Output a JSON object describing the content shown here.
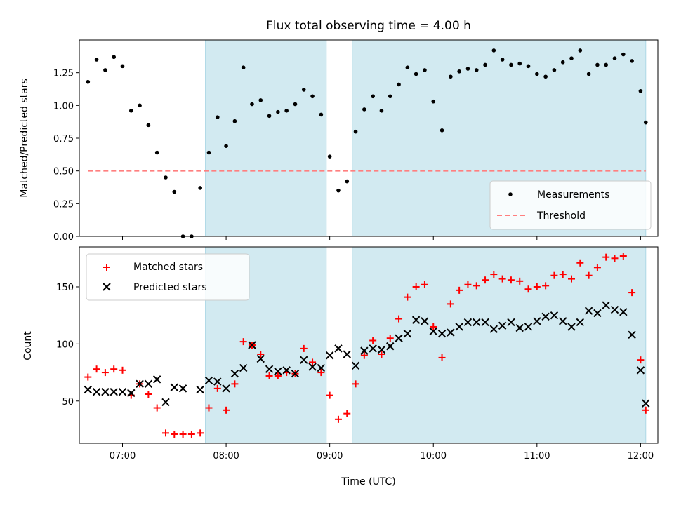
{
  "title": "Flux total observing time = 4.00 h",
  "xlabel": "Time (UTC)",
  "x_ticks": [
    "07:00",
    "08:00",
    "09:00",
    "10:00",
    "11:00",
    "12:00"
  ],
  "colors": {
    "measurement": "#000000",
    "threshold": "#ff7f7f",
    "matched": "#ff0000",
    "predicted": "#000000",
    "shade": "#add8e6"
  },
  "chart_data": [
    {
      "type": "scatter",
      "ylabel": "Matched/Predicted stars",
      "xlim": [
        "06:35",
        "12:10"
      ],
      "ylim": [
        0,
        1.5
      ],
      "y_ticks": [
        0.0,
        0.25,
        0.5,
        0.75,
        1.0,
        1.25
      ],
      "y_tick_labels": [
        "0.00",
        "0.25",
        "0.50",
        "0.75",
        "1.00",
        "1.25"
      ],
      "legend_position": "lower-right",
      "shaded_intervals": [
        [
          "07:48",
          "08:58"
        ],
        [
          "09:13",
          "12:03"
        ]
      ],
      "threshold": {
        "name": "Threshold",
        "value": 0.5,
        "x_range": [
          "06:40",
          "12:03"
        ]
      },
      "series": [
        {
          "name": "Measurements",
          "x": [
            "06:40",
            "06:45",
            "06:50",
            "06:55",
            "07:00",
            "07:05",
            "07:10",
            "07:15",
            "07:20",
            "07:25",
            "07:30",
            "07:35",
            "07:40",
            "07:45",
            "07:50",
            "07:55",
            "08:00",
            "08:05",
            "08:10",
            "08:15",
            "08:20",
            "08:25",
            "08:30",
            "08:35",
            "08:40",
            "08:45",
            "08:50",
            "08:55",
            "09:00",
            "09:05",
            "09:10",
            "09:15",
            "09:20",
            "09:25",
            "09:30",
            "09:35",
            "09:40",
            "09:45",
            "09:50",
            "09:55",
            "10:00",
            "10:05",
            "10:10",
            "10:15",
            "10:20",
            "10:25",
            "10:30",
            "10:35",
            "10:40",
            "10:45",
            "10:50",
            "10:55",
            "11:00",
            "11:05",
            "11:10",
            "11:15",
            "11:20",
            "11:25",
            "11:30",
            "11:35",
            "11:40",
            "11:45",
            "11:50",
            "11:55",
            "12:00",
            "12:03"
          ],
          "y": [
            1.18,
            1.35,
            1.27,
            1.37,
            1.3,
            0.96,
            1.0,
            0.85,
            0.64,
            0.45,
            0.34,
            0.0,
            0.0,
            0.37,
            0.64,
            0.91,
            0.69,
            0.88,
            1.29,
            1.01,
            1.04,
            0.92,
            0.95,
            0.96,
            1.01,
            1.12,
            1.07,
            0.93,
            0.61,
            0.35,
            0.42,
            0.8,
            0.97,
            1.07,
            0.96,
            1.07,
            1.16,
            1.29,
            1.24,
            1.27,
            1.03,
            0.81,
            1.22,
            1.26,
            1.28,
            1.27,
            1.31,
            1.42,
            1.35,
            1.31,
            1.32,
            1.3,
            1.24,
            1.22,
            1.27,
            1.33,
            1.36,
            1.42,
            1.24,
            1.31,
            1.31,
            1.36,
            1.39,
            1.34,
            1.11,
            0.87
          ]
        }
      ]
    },
    {
      "type": "scatter",
      "ylabel": "Count",
      "xlim": [
        "06:35",
        "12:10"
      ],
      "ylim": [
        13,
        185
      ],
      "y_ticks": [
        50,
        100,
        150
      ],
      "y_tick_labels": [
        "50",
        "100",
        "150"
      ],
      "legend_position": "upper-left",
      "shaded_intervals": [
        [
          "07:48",
          "08:58"
        ],
        [
          "09:13",
          "12:03"
        ]
      ],
      "series": [
        {
          "name": "Matched stars",
          "marker": "plus",
          "x": [
            "06:40",
            "06:45",
            "06:50",
            "06:55",
            "07:00",
            "07:05",
            "07:10",
            "07:15",
            "07:20",
            "07:25",
            "07:30",
            "07:35",
            "07:40",
            "07:45",
            "07:50",
            "07:55",
            "08:00",
            "08:05",
            "08:10",
            "08:15",
            "08:20",
            "08:25",
            "08:30",
            "08:35",
            "08:40",
            "08:45",
            "08:50",
            "08:55",
            "09:00",
            "09:05",
            "09:10",
            "09:15",
            "09:20",
            "09:25",
            "09:30",
            "09:35",
            "09:40",
            "09:45",
            "09:50",
            "09:55",
            "10:00",
            "10:05",
            "10:10",
            "10:15",
            "10:20",
            "10:25",
            "10:30",
            "10:35",
            "10:40",
            "10:45",
            "10:50",
            "10:55",
            "11:00",
            "11:05",
            "11:10",
            "11:15",
            "11:20",
            "11:25",
            "11:30",
            "11:35",
            "11:40",
            "11:45",
            "11:50",
            "11:55",
            "12:00",
            "12:03"
          ],
          "y": [
            71,
            78,
            75,
            78,
            77,
            55,
            65,
            56,
            44,
            22,
            21,
            21,
            21,
            22,
            44,
            61,
            42,
            65,
            102,
            99,
            91,
            72,
            72,
            75,
            74,
            96,
            84,
            75,
            55,
            34,
            39,
            65,
            90,
            103,
            91,
            105,
            122,
            141,
            150,
            152,
            115,
            88,
            135,
            147,
            152,
            151,
            156,
            161,
            157,
            156,
            155,
            148,
            150,
            151,
            160,
            161,
            157,
            171,
            160,
            167,
            176,
            175,
            177,
            145,
            86,
            42
          ]
        },
        {
          "name": "Predicted stars",
          "marker": "x",
          "x": [
            "06:40",
            "06:45",
            "06:50",
            "06:55",
            "07:00",
            "07:05",
            "07:10",
            "07:15",
            "07:20",
            "07:25",
            "07:30",
            "07:35",
            "07:45",
            "07:50",
            "07:55",
            "08:00",
            "08:05",
            "08:10",
            "08:15",
            "08:20",
            "08:25",
            "08:30",
            "08:35",
            "08:40",
            "08:45",
            "08:50",
            "08:55",
            "09:00",
            "09:05",
            "09:10",
            "09:15",
            "09:20",
            "09:25",
            "09:30",
            "09:35",
            "09:40",
            "09:45",
            "09:50",
            "09:55",
            "10:00",
            "10:05",
            "10:10",
            "10:15",
            "10:20",
            "10:25",
            "10:30",
            "10:35",
            "10:40",
            "10:45",
            "10:50",
            "10:55",
            "11:00",
            "11:05",
            "11:10",
            "11:15",
            "11:20",
            "11:25",
            "11:30",
            "11:35",
            "11:40",
            "11:45",
            "11:50",
            "11:55",
            "12:00",
            "12:03"
          ],
          "y": [
            60,
            58,
            58,
            58,
            58,
            57,
            65,
            65,
            69,
            49,
            62,
            61,
            60,
            68,
            67,
            61,
            74,
            79,
            99,
            87,
            78,
            76,
            77,
            74,
            86,
            80,
            79,
            90,
            96,
            91,
            81,
            94,
            96,
            95,
            98,
            105,
            109,
            121,
            120,
            111,
            109,
            110,
            115,
            119,
            119,
            119,
            113,
            116,
            119,
            114,
            115,
            120,
            124,
            125,
            120,
            115,
            119,
            129,
            127,
            134,
            130,
            128,
            108,
            77,
            48
          ]
        }
      ]
    }
  ]
}
